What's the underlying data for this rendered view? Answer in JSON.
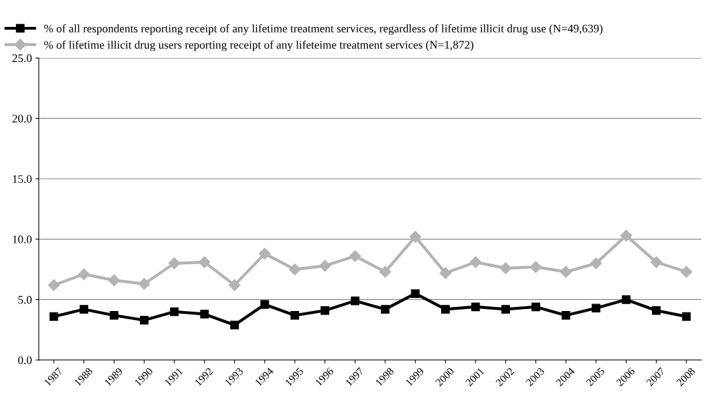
{
  "chart_data": {
    "type": "line",
    "categories": [
      "1987",
      "1988",
      "1989",
      "1990",
      "1991",
      "1992",
      "1993",
      "1994",
      "1995",
      "1996",
      "1997",
      "1998",
      "1999",
      "2000",
      "2001",
      "2002",
      "2003",
      "2004",
      "2005",
      "2006",
      "2007",
      "2008"
    ],
    "series": [
      {
        "name": "% of all respondents reporting receipt of any lifetime treatment services, regardless of lifetime illicit drug use (N=49,639)",
        "color": "#000000",
        "marker": "square",
        "values": [
          3.6,
          4.2,
          3.7,
          3.3,
          4.0,
          3.8,
          2.9,
          4.6,
          3.7,
          4.1,
          4.9,
          4.2,
          5.5,
          4.2,
          4.4,
          4.2,
          4.4,
          3.7,
          4.3,
          5.0,
          4.1,
          3.6
        ]
      },
      {
        "name": "% of lifetime illicit drug users reporting receipt of any lifeteime treatment services (N=1,872)",
        "color": "#b3b3b3",
        "marker": "diamond",
        "values": [
          6.2,
          7.1,
          6.6,
          6.3,
          8.0,
          8.1,
          6.2,
          8.8,
          7.5,
          7.8,
          8.6,
          7.3,
          10.2,
          7.2,
          8.1,
          7.6,
          7.7,
          7.3,
          8.0,
          10.3,
          8.1,
          7.3
        ]
      }
    ],
    "ylim": [
      0,
      25
    ],
    "yticks": [
      {
        "value": 0,
        "label": "0.0"
      },
      {
        "value": 5,
        "label": "5.0"
      },
      {
        "value": 10,
        "label": "10.0"
      },
      {
        "value": 15,
        "label": "15.0"
      },
      {
        "value": 20,
        "label": "20.0"
      },
      {
        "value": 25,
        "label": "25.0"
      }
    ],
    "grid": "y",
    "legend": "top left",
    "line_style": "solid"
  }
}
